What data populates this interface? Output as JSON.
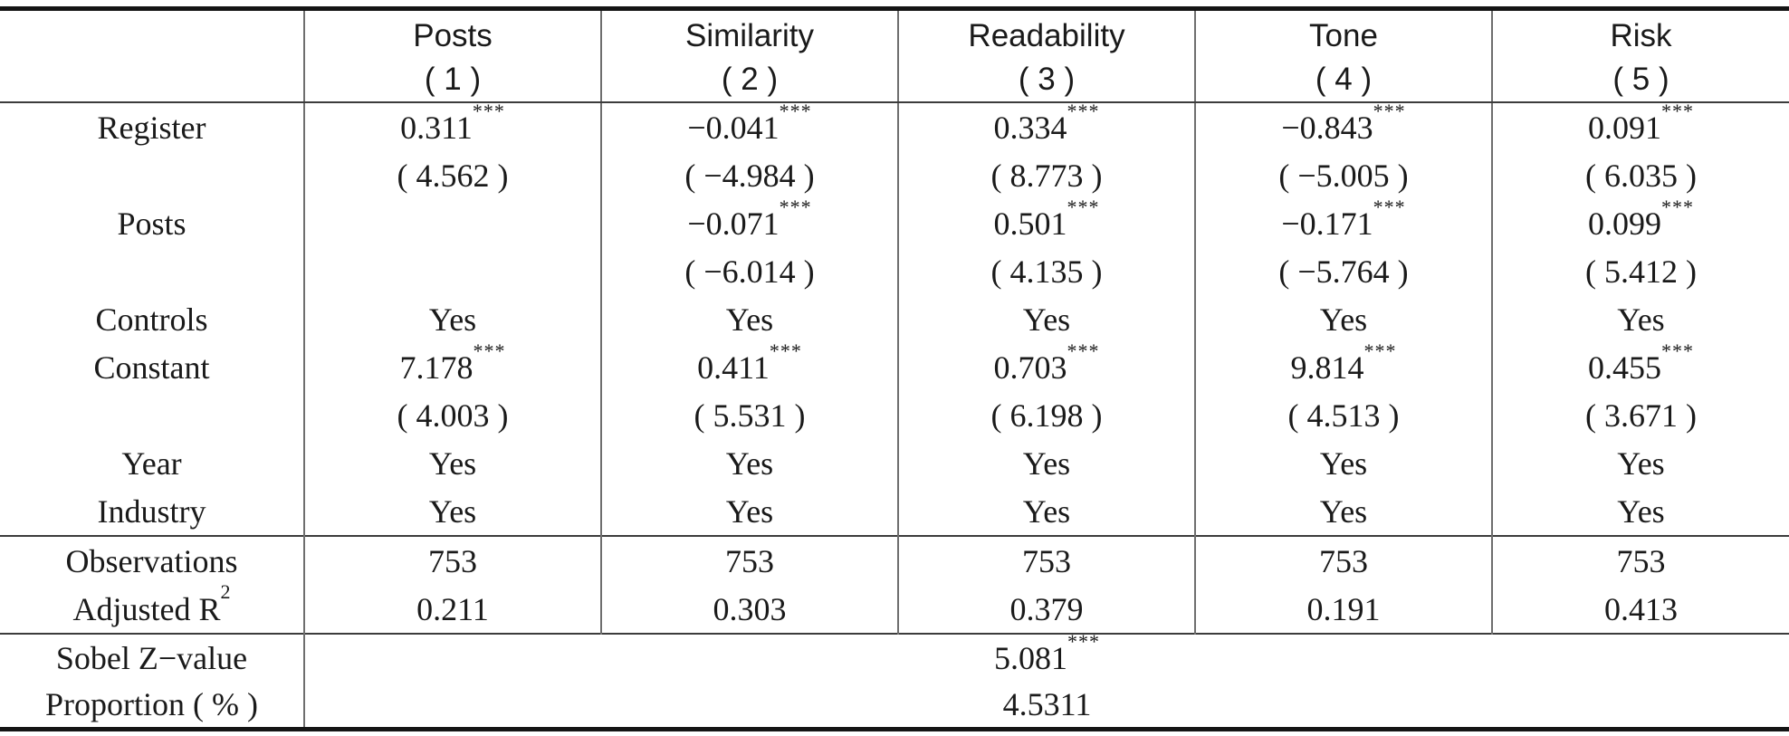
{
  "meta": {
    "colors": {
      "background": "#ffffff",
      "text": "#1a1a1a",
      "thick_rule": "#141414",
      "thin_rule": "#3c3c3c",
      "column_rule": "#6e6e6e"
    }
  },
  "table": {
    "columns": [
      {
        "title": "",
        "number": ""
      },
      {
        "title": "Posts",
        "number": "( 1 )"
      },
      {
        "title": "Similarity",
        "number": "( 2 )"
      },
      {
        "title": "Readability",
        "number": "( 3 )"
      },
      {
        "title": "Tone",
        "number": "( 4 )"
      },
      {
        "title": "Risk",
        "number": "( 5 )"
      }
    ],
    "rows": [
      {
        "label": "Register",
        "labelSup": "",
        "cells": [
          {
            "v": "0.311",
            "s": "***"
          },
          {
            "v": "−0.041",
            "s": "***"
          },
          {
            "v": "0.334",
            "s": "***"
          },
          {
            "v": "−0.843",
            "s": "***"
          },
          {
            "v": "0.091",
            "s": "***"
          }
        ]
      },
      {
        "label": "",
        "labelSup": "",
        "cells": [
          {
            "v": "( 4.562 )",
            "s": ""
          },
          {
            "v": "( −4.984 )",
            "s": ""
          },
          {
            "v": "( 8.773 )",
            "s": ""
          },
          {
            "v": "( −5.005 )",
            "s": ""
          },
          {
            "v": "( 6.035 )",
            "s": ""
          }
        ]
      },
      {
        "label": "Posts",
        "labelSup": "",
        "cells": [
          {
            "v": "",
            "s": ""
          },
          {
            "v": "−0.071",
            "s": "***"
          },
          {
            "v": "0.501",
            "s": "***"
          },
          {
            "v": "−0.171",
            "s": "***"
          },
          {
            "v": "0.099",
            "s": "***"
          }
        ]
      },
      {
        "label": "",
        "labelSup": "",
        "cells": [
          {
            "v": "",
            "s": ""
          },
          {
            "v": "( −6.014 )",
            "s": ""
          },
          {
            "v": "( 4.135 )",
            "s": ""
          },
          {
            "v": "( −5.764 )",
            "s": ""
          },
          {
            "v": "( 5.412 )",
            "s": ""
          }
        ]
      },
      {
        "label": "Controls",
        "labelSup": "",
        "cells": [
          {
            "v": "Yes",
            "s": ""
          },
          {
            "v": "Yes",
            "s": ""
          },
          {
            "v": "Yes",
            "s": ""
          },
          {
            "v": "Yes",
            "s": ""
          },
          {
            "v": "Yes",
            "s": ""
          }
        ]
      },
      {
        "label": "Constant",
        "labelSup": "",
        "cells": [
          {
            "v": "7.178",
            "s": "***"
          },
          {
            "v": "0.411",
            "s": "***"
          },
          {
            "v": "0.703",
            "s": "***"
          },
          {
            "v": "9.814",
            "s": "***"
          },
          {
            "v": "0.455",
            "s": "***"
          }
        ]
      },
      {
        "label": "",
        "labelSup": "",
        "cells": [
          {
            "v": "( 4.003 )",
            "s": ""
          },
          {
            "v": "( 5.531 )",
            "s": ""
          },
          {
            "v": "( 6.198 )",
            "s": ""
          },
          {
            "v": "( 4.513 )",
            "s": ""
          },
          {
            "v": "( 3.671 )",
            "s": ""
          }
        ]
      },
      {
        "label": "Year",
        "labelSup": "",
        "cells": [
          {
            "v": "Yes",
            "s": ""
          },
          {
            "v": "Yes",
            "s": ""
          },
          {
            "v": "Yes",
            "s": ""
          },
          {
            "v": "Yes",
            "s": ""
          },
          {
            "v": "Yes",
            "s": ""
          }
        ]
      },
      {
        "label": "Industry",
        "labelSup": "",
        "cells": [
          {
            "v": "Yes",
            "s": ""
          },
          {
            "v": "Yes",
            "s": ""
          },
          {
            "v": "Yes",
            "s": ""
          },
          {
            "v": "Yes",
            "s": ""
          },
          {
            "v": "Yes",
            "s": ""
          }
        ]
      },
      {
        "label": "Observations",
        "labelSup": "",
        "cells": [
          {
            "v": "753",
            "s": ""
          },
          {
            "v": "753",
            "s": ""
          },
          {
            "v": "753",
            "s": ""
          },
          {
            "v": "753",
            "s": ""
          },
          {
            "v": "753",
            "s": ""
          }
        ]
      },
      {
        "label": "Adjusted R",
        "labelSup": "2",
        "cells": [
          {
            "v": "0.211",
            "s": ""
          },
          {
            "v": "0.303",
            "s": ""
          },
          {
            "v": "0.379",
            "s": ""
          },
          {
            "v": "0.191",
            "s": ""
          },
          {
            "v": "0.413",
            "s": ""
          }
        ]
      }
    ],
    "sobel": {
      "label": "Sobel Z−value",
      "value": "5.081",
      "stars": "***"
    },
    "proportion": {
      "label": "Proportion ( % )",
      "value": "4.5311",
      "stars": ""
    }
  }
}
